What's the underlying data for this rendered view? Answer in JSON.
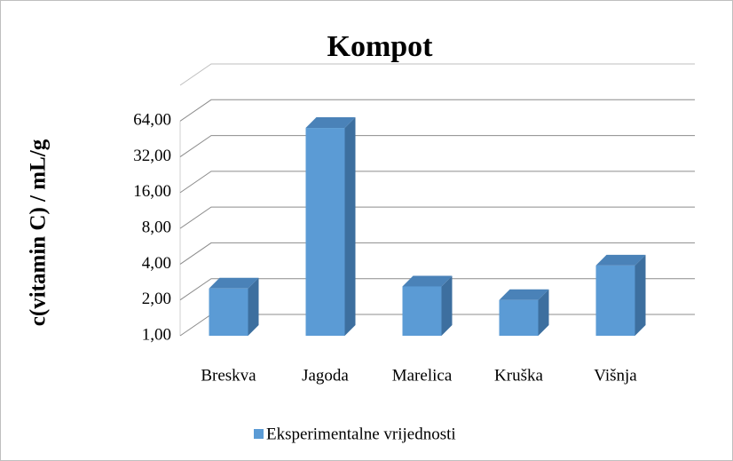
{
  "chart_data": {
    "type": "bar3d",
    "title": "Kompot",
    "y_label": "c(vitamin C) / mL/g",
    "categories": [
      "Breskva",
      "Jagoda",
      "Marelica",
      "Kruška",
      "Višnja"
    ],
    "series": [
      {
        "name": "Eksperimentalne vrijednosti",
        "color": "#5b9bd5",
        "values": [
          2.5,
          56,
          2.6,
          2.0,
          3.9
        ]
      }
    ],
    "log_scale": true,
    "ylim": [
      1,
      128
    ],
    "yticks": [
      {
        "value": 1,
        "label": "1,00"
      },
      {
        "value": 2,
        "label": "2,00"
      },
      {
        "value": 4,
        "label": "4,00"
      },
      {
        "value": 8,
        "label": "8,00"
      },
      {
        "value": 16,
        "label": "16,00"
      },
      {
        "value": 32,
        "label": "32,00"
      },
      {
        "value": 64,
        "label": "64,00"
      }
    ],
    "grid": true,
    "legend": "bottom"
  }
}
